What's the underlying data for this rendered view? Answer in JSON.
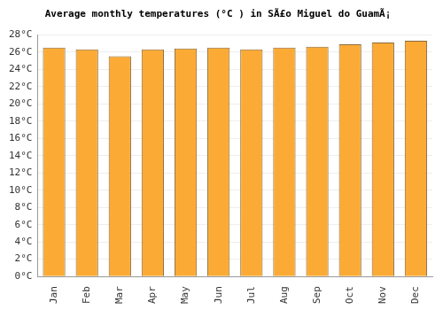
{
  "chart_data": {
    "type": "bar",
    "title": "Average monthly temperatures (°C ) in SÃ£o Miguel do GuamÃ¡",
    "categories": [
      "Jan",
      "Feb",
      "Mar",
      "Apr",
      "May",
      "Jun",
      "Jul",
      "Aug",
      "Sep",
      "Oct",
      "Nov",
      "Dec"
    ],
    "values": [
      26.5,
      26.3,
      25.5,
      26.3,
      26.4,
      26.5,
      26.3,
      26.5,
      26.6,
      26.9,
      27.1,
      27.3
    ],
    "color": "#fbab35",
    "ylim": [
      0,
      28
    ],
    "yticks": [
      {
        "value": 0,
        "label": "0°C"
      },
      {
        "value": 2,
        "label": "2°C"
      },
      {
        "value": 4,
        "label": "4°C"
      },
      {
        "value": 6,
        "label": "6°C"
      },
      {
        "value": 8,
        "label": "8°C"
      },
      {
        "value": 10,
        "label": "10°C"
      },
      {
        "value": 12,
        "label": "12°C"
      },
      {
        "value": 14,
        "label": "14°C"
      },
      {
        "value": 16,
        "label": "16°C"
      },
      {
        "value": 18,
        "label": "18°C"
      },
      {
        "value": 20,
        "label": "20°C"
      },
      {
        "value": 22,
        "label": "22°C"
      },
      {
        "value": 24,
        "label": "24°C"
      },
      {
        "value": 26,
        "label": "26°C"
      },
      {
        "value": 28,
        "label": "28°C"
      }
    ],
    "grid": true
  }
}
